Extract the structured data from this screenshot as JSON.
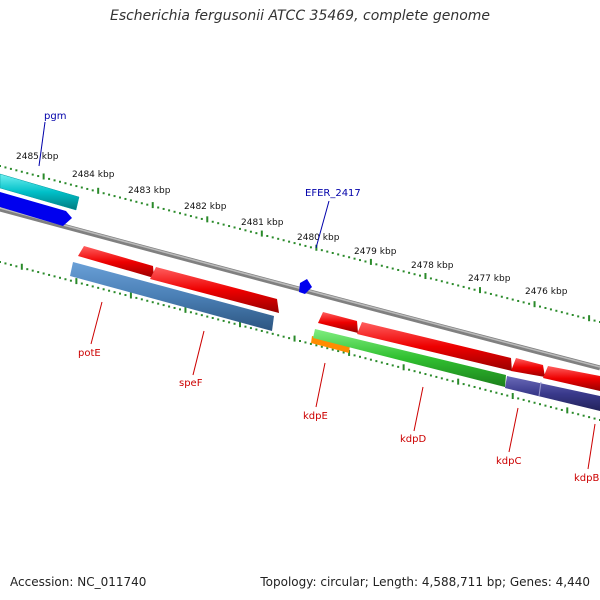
{
  "title": "Escherichia fergusonii ATCC 35469, complete genome",
  "footer": {
    "accession": "Accession: NC_011740",
    "summary": "Topology: circular; Length: 4,588,711 bp; Genes: 4,440"
  },
  "ruler": [
    "2485 kbp",
    "2484 kbp",
    "2483 kbp",
    "2482 kbp",
    "2481 kbp",
    "2480 kbp",
    "2479 kbp",
    "2478 kbp",
    "2477 kbp",
    "2476 kbp"
  ],
  "genes": [
    {
      "name": "pgm",
      "color": "#00c0c8"
    },
    {
      "name": "EFER_2417",
      "color": "#0000ee"
    },
    {
      "name": "potE",
      "color": "#ee0000"
    },
    {
      "name": "speF",
      "color": "#4a7fb5"
    },
    {
      "name": "kdpE",
      "color": "#ee0000"
    },
    {
      "name": "kdpD",
      "color": "#30c030"
    },
    {
      "name": "kdpC",
      "color": "#ee0000"
    },
    {
      "name": "kdpB",
      "color": "#3a3a8c"
    }
  ],
  "colors": {
    "backbone": "#808080",
    "ticks": "#2a8a2a",
    "orange": "#ff8c00",
    "label_blue": "#0000aa",
    "label_red": "#cc0000"
  }
}
